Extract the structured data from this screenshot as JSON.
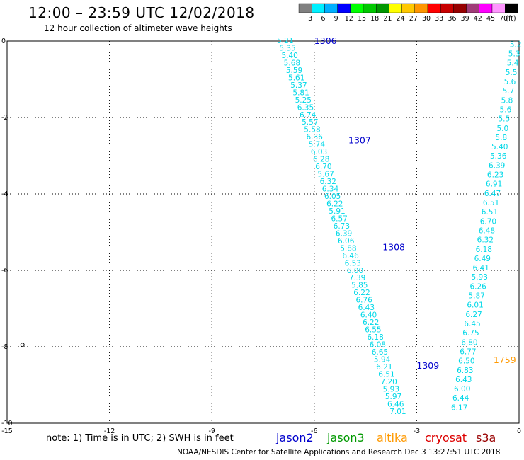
{
  "header": {
    "title": "12:00 – 23:59 UTC 12/02/2018",
    "subtitle": "12 hour collection of altimeter wave heights"
  },
  "legend": {
    "unit": "(ft)",
    "bins": [
      {
        "label": "3",
        "color": "#808080"
      },
      {
        "label": "6",
        "color": "#00f0ff"
      },
      {
        "label": "9",
        "color": "#00b0ff"
      },
      {
        "label": "12",
        "color": "#0000ff"
      },
      {
        "label": "15",
        "color": "#00ff00"
      },
      {
        "label": "18",
        "color": "#00c800"
      },
      {
        "label": "21",
        "color": "#009600"
      },
      {
        "label": "24",
        "color": "#ffff00"
      },
      {
        "label": "27",
        "color": "#ffc800"
      },
      {
        "label": "30",
        "color": "#ff9600"
      },
      {
        "label": "33",
        "color": "#ff0000"
      },
      {
        "label": "36",
        "color": "#c80000"
      },
      {
        "label": "39",
        "color": "#960000"
      },
      {
        "label": "42",
        "color": "#a03c78"
      },
      {
        "label": "45",
        "color": "#ff00ff"
      },
      {
        "label": "70",
        "color": "#ff96ff"
      },
      {
        "label": "",
        "color": "#000000"
      }
    ]
  },
  "note": "note: 1) Time is in UTC; 2) SWH is in feet",
  "satellites": [
    {
      "name": "jason2",
      "color": "#0000cc"
    },
    {
      "name": "jason3",
      "color": "#009900"
    },
    {
      "name": "altika",
      "color": "#ff9900"
    },
    {
      "name": "cryosat",
      "color": "#dd0000"
    },
    {
      "name": "s3a",
      "color": "#990000"
    }
  ],
  "footer": "NOAA/NESDIS Center for Satellite Applications and Research    Dec  3 13:27:51 UTC 2018",
  "chart_data": {
    "type": "scatter",
    "xlim": [
      -15,
      0
    ],
    "ylim": [
      -10,
      0
    ],
    "xticks": [
      "-15",
      "-12",
      "-9",
      "-6",
      "-3",
      "0"
    ],
    "yticks": [
      "0",
      "-2",
      "-4",
      "-6",
      "-8",
      "-10"
    ],
    "grid": true,
    "time_labels": [
      {
        "text": "1306",
        "x": -6.0,
        "y": 0.0,
        "color": "#0000cc"
      },
      {
        "text": "1307",
        "x": -5.0,
        "y": -2.6,
        "color": "#0000cc"
      },
      {
        "text": "1308",
        "x": -4.0,
        "y": -5.4,
        "color": "#0000cc"
      },
      {
        "text": "1309",
        "x": -3.0,
        "y": -8.5,
        "color": "#0000cc"
      },
      {
        "text": "1759",
        "x": -0.75,
        "y": -8.35,
        "color": "#ff9900"
      }
    ],
    "tracks": [
      {
        "color": "#00d8e8",
        "x_start": -6.85,
        "y_start": 0.0,
        "x_end": -3.55,
        "y_end": -9.7,
        "values": [
          "5.21",
          "5.35",
          "5.40",
          "5.68",
          "5.59",
          "5.61",
          "5.37",
          "5.81",
          "5.25",
          "6.35",
          "6.74",
          "5.57",
          "5.58",
          "6.36",
          "5.74",
          "6.03",
          "6.28",
          "6.70",
          "5.67",
          "6.32",
          "6.34",
          "6.05",
          "6.22",
          "5.91",
          "6.57",
          "6.73",
          "6.39",
          "6.06",
          "5.88",
          "6.46",
          "6.53",
          "6.00",
          "7.39",
          "5.85",
          "6.22",
          "6.76",
          "6.43",
          "6.40",
          "6.22",
          "6.55",
          "6.18",
          "6.08",
          "6.65",
          "5.94",
          "6.21",
          "6.51",
          "7.20",
          "5.93",
          "5.97",
          "6.46",
          "7.01"
        ]
      },
      {
        "color": "#00d8e8",
        "x_start": -0.1,
        "y_start": -0.1,
        "x_end": -1.75,
        "y_end": -9.6,
        "values": [
          "5.2",
          "5.3",
          "5.4",
          "5.5",
          "5.6",
          "5.7",
          "5.8",
          "5.6",
          "5.5",
          "5.0",
          "5.8",
          "5.40",
          "5.36",
          "6.39",
          "6.23",
          "6.91",
          "6.47",
          "6.51",
          "6.51",
          "6.70",
          "6.48",
          "6.32",
          "6.18",
          "6.49",
          "6.41",
          "5.93",
          "6.26",
          "5.87",
          "6.01",
          "6.27",
          "6.45",
          "6.75",
          "6.80",
          "6.77",
          "6.50",
          "6.83",
          "6.43",
          "6.00",
          "6.44",
          "6.17"
        ]
      }
    ],
    "markers": [
      {
        "x": -14.55,
        "y": -7.95,
        "symbol": "ring",
        "color": "#000000"
      }
    ]
  }
}
